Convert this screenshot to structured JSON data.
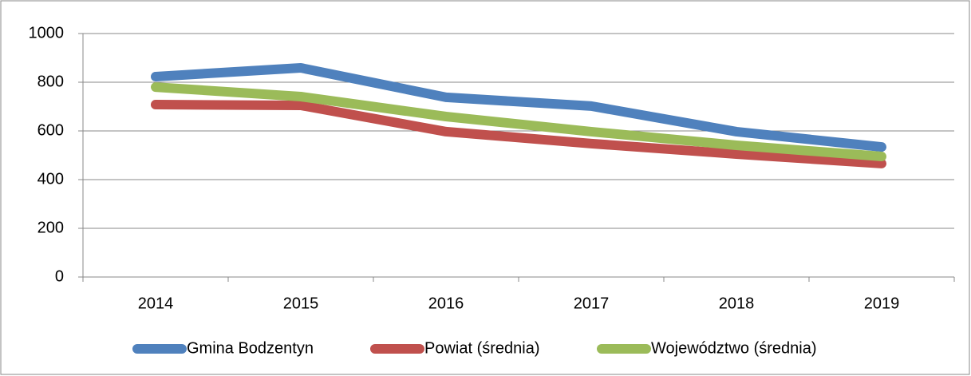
{
  "chart_data": {
    "type": "line",
    "categories": [
      "2014",
      "2015",
      "2016",
      "2017",
      "2018",
      "2019"
    ],
    "series": [
      {
        "name": "Gmina Bodzentyn",
        "color": "#4f81bd",
        "values": [
          823,
          859,
          738,
          702,
          597,
          534
        ]
      },
      {
        "name": "Powiat (średnia)",
        "color": "#c0504d",
        "values": [
          708,
          705,
          597,
          548,
          505,
          466
        ]
      },
      {
        "name": "Województwo (średnia)",
        "color": "#9bbb59",
        "values": [
          780,
          741,
          659,
          597,
          541,
          495
        ]
      }
    ],
    "ylim": [
      0,
      1000
    ],
    "yticks": [
      0,
      200,
      400,
      600,
      800,
      1000
    ],
    "grid": true,
    "legend": "bottom"
  }
}
